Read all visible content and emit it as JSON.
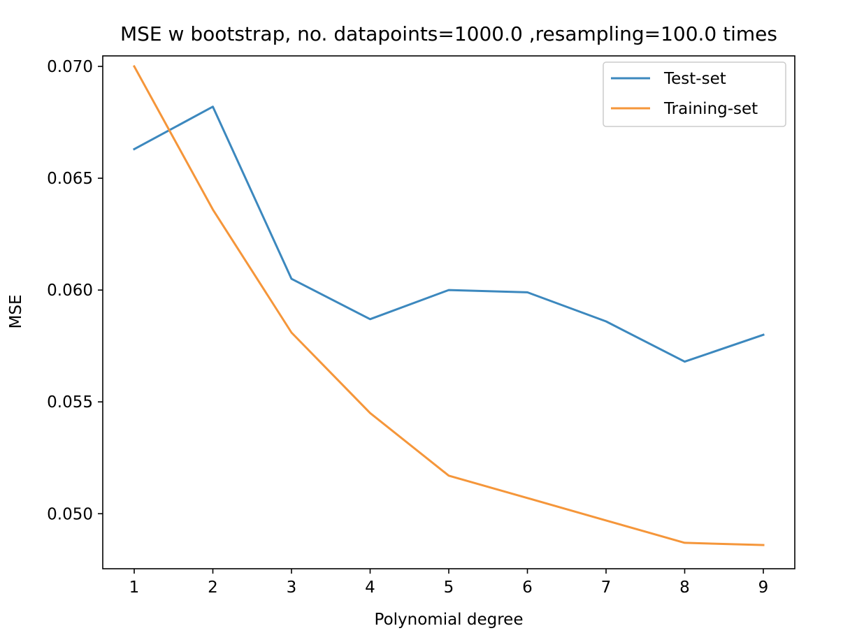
{
  "chart_data": {
    "type": "line",
    "title": "MSE w bootstrap, no. datapoints=1000.0 ,resampling=100.0 times",
    "xlabel": "Polynomial degree",
    "ylabel": "MSE",
    "x": [
      1,
      2,
      3,
      4,
      5,
      6,
      7,
      8,
      9
    ],
    "x_ticks": [
      "1",
      "2",
      "3",
      "4",
      "5",
      "6",
      "7",
      "8",
      "9"
    ],
    "y_ticks": [
      "0.050",
      "0.055",
      "0.060",
      "0.065",
      "0.070"
    ],
    "y_tick_values": [
      0.05,
      0.055,
      0.06,
      0.065,
      0.07
    ],
    "xlim": [
      0.6,
      9.4
    ],
    "ylim": [
      0.04754,
      0.07047
    ],
    "grid": false,
    "legend_position": "top-right",
    "series": [
      {
        "name": "Test-set",
        "color": "#3c88be",
        "values": [
          0.0663,
          0.0682,
          0.0605,
          0.0587,
          0.06,
          0.0599,
          0.0586,
          0.0568,
          0.058
        ]
      },
      {
        "name": "Training-set",
        "color": "#f5963a",
        "values": [
          0.07,
          0.0636,
          0.0581,
          0.0545,
          0.0517,
          0.0507,
          0.0497,
          0.0487,
          0.0486
        ]
      }
    ]
  }
}
